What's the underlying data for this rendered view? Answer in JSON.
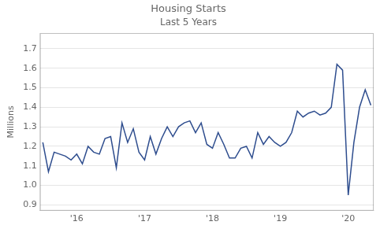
{
  "chart_data": {
    "type": "line",
    "title": "Housing Starts",
    "subtitle": "Last 5 Years",
    "y_label": "Millions",
    "color": "#2e4d8e",
    "categories": [
      null,
      null,
      null,
      null,
      null,
      null,
      "'16",
      null,
      null,
      null,
      null,
      null,
      null,
      null,
      null,
      null,
      null,
      null,
      "'17",
      null,
      null,
      null,
      null,
      null,
      null,
      null,
      null,
      null,
      null,
      null,
      "'18",
      null,
      null,
      null,
      null,
      null,
      null,
      null,
      null,
      null,
      null,
      null,
      "'19",
      null,
      null,
      null,
      null,
      null,
      null,
      null,
      null,
      null,
      null,
      null,
      "'20",
      null,
      null,
      null,
      null
    ],
    "values": [
      1.22,
      1.07,
      1.17,
      1.16,
      1.15,
      1.13,
      1.16,
      1.11,
      1.2,
      1.17,
      1.16,
      1.24,
      1.25,
      1.09,
      1.32,
      1.22,
      1.29,
      1.17,
      1.13,
      1.25,
      1.16,
      1.24,
      1.3,
      1.25,
      1.3,
      1.32,
      1.33,
      1.27,
      1.32,
      1.21,
      1.19,
      1.27,
      1.21,
      1.14,
      1.14,
      1.19,
      1.2,
      1.14,
      1.27,
      1.21,
      1.25,
      1.22,
      1.2,
      1.22,
      1.27,
      1.38,
      1.35,
      1.37,
      1.38,
      1.36,
      1.37,
      1.4,
      1.62,
      1.59,
      0.95,
      1.22,
      1.4,
      1.49,
      1.41
    ],
    "ylim": [
      0.87,
      1.78
    ],
    "yticks": [
      0.9,
      {
        "value": 1.0,
        "label": "1.0"
      },
      1.1,
      1.2,
      1.3,
      1.4,
      1.5,
      1.6,
      1.7
    ],
    "grid": "y",
    "legend": false
  }
}
